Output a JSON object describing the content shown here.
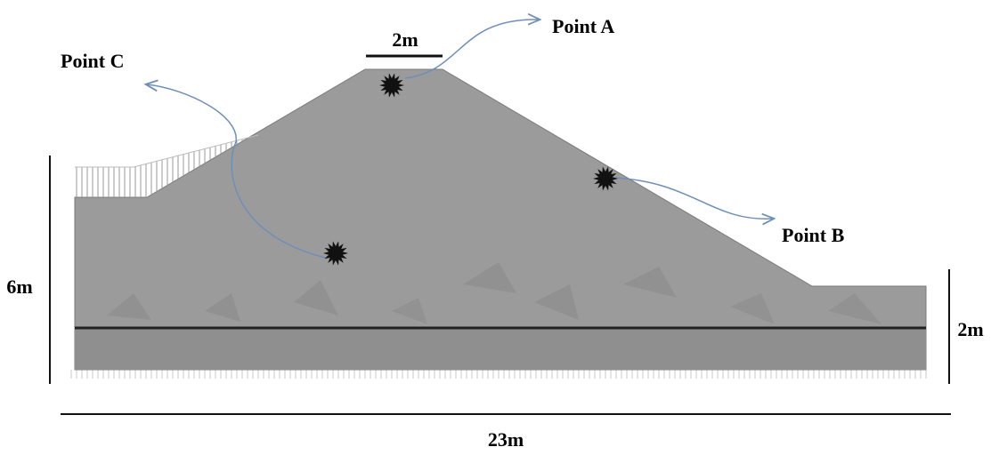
{
  "labels": {
    "top_width": "2m",
    "left_height": "6m",
    "right_height": "2m",
    "base_width": "23m"
  },
  "points": [
    {
      "id": "A",
      "label": "Point A"
    },
    {
      "id": "B",
      "label": "Point B"
    },
    {
      "id": "C",
      "label": "Point C"
    }
  ],
  "colors": {
    "soil_fill": "#9b9b9b",
    "soil_shade": "#8a8a8a",
    "base_layer": "#8f8f8f",
    "arrow": "#6f8fb8",
    "marker": "#111111",
    "dim_line": "#111111"
  }
}
